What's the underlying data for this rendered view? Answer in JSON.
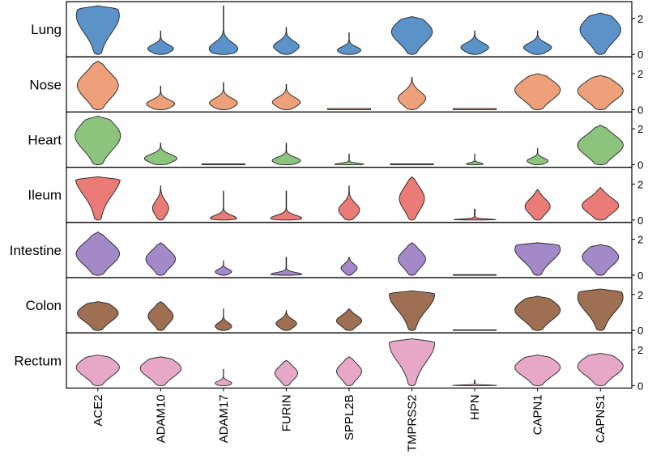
{
  "chart_data": {
    "type": "violin",
    "genes": [
      "ACE2",
      "ADAM10",
      "ADAM17",
      "FURIN",
      "SPPL2B",
      "TMPRSS2",
      "HPN",
      "CAPN1",
      "CAPNS1"
    ],
    "y_ticks": [
      "0",
      "2"
    ],
    "ylim": [
      0,
      2.8
    ],
    "tissues": [
      {
        "name": "Lung",
        "color": "#5b93c9",
        "violins": [
          {
            "max": 2.7,
            "peak": 0.8,
            "width": 0.95
          },
          {
            "max": 1.3,
            "peak": 0.25,
            "width": 0.55
          },
          {
            "max": 2.7,
            "peak": 0.12,
            "width": 0.6
          },
          {
            "max": 1.5,
            "peak": 0.3,
            "width": 0.55
          },
          {
            "max": 1.2,
            "peak": 0.2,
            "width": 0.5
          },
          {
            "max": 2.1,
            "peak": 0.6,
            "width": 0.9
          },
          {
            "max": 1.3,
            "peak": 0.3,
            "width": 0.6
          },
          {
            "max": 1.3,
            "peak": 0.3,
            "width": 0.6
          },
          {
            "max": 2.3,
            "peak": 0.6,
            "width": 0.9
          }
        ]
      },
      {
        "name": "Nose",
        "color": "#eda07a",
        "violins": [
          {
            "max": 2.7,
            "peak": 0.5,
            "width": 0.9
          },
          {
            "max": 1.3,
            "peak": 0.25,
            "width": 0.6
          },
          {
            "max": 1.5,
            "peak": 0.25,
            "width": 0.6
          },
          {
            "max": 1.4,
            "peak": 0.3,
            "width": 0.6
          },
          {
            "max": 0.06,
            "peak": 0.02,
            "width": 0.95
          },
          {
            "max": 1.8,
            "peak": 0.35,
            "width": 0.6
          },
          {
            "max": 0.06,
            "peak": 0.02,
            "width": 0.95
          },
          {
            "max": 2.0,
            "peak": 0.55,
            "width": 1.0
          },
          {
            "max": 1.9,
            "peak": 0.55,
            "width": 1.0
          }
        ]
      },
      {
        "name": "Heart",
        "color": "#8cc47e",
        "violins": [
          {
            "max": 2.7,
            "peak": 0.6,
            "width": 1.0
          },
          {
            "max": 1.2,
            "peak": 0.3,
            "width": 0.7
          },
          {
            "max": 0.06,
            "peak": 0.02,
            "width": 0.95
          },
          {
            "max": 1.2,
            "peak": 0.2,
            "width": 0.6
          },
          {
            "max": 0.6,
            "peak": 0.05,
            "width": 0.6
          },
          {
            "max": 0.06,
            "peak": 0.02,
            "width": 0.95
          },
          {
            "max": 0.6,
            "peak": 0.08,
            "width": 0.35
          },
          {
            "max": 0.9,
            "peak": 0.25,
            "width": 0.45
          },
          {
            "max": 2.2,
            "peak": 0.5,
            "width": 1.0
          }
        ]
      },
      {
        "name": "Ileum",
        "color": "#ea7b77",
        "violins": [
          {
            "max": 2.4,
            "peak": 1.0,
            "width": 1.0
          },
          {
            "max": 1.9,
            "peak": 0.35,
            "width": 0.35
          },
          {
            "max": 1.6,
            "peak": 0.06,
            "width": 0.55
          },
          {
            "max": 1.6,
            "peak": 0.06,
            "width": 0.65
          },
          {
            "max": 1.9,
            "peak": 0.3,
            "width": 0.45
          },
          {
            "max": 2.4,
            "peak": 0.5,
            "width": 0.55
          },
          {
            "max": 0.6,
            "peak": 0.0,
            "width": 0.95
          },
          {
            "max": 1.7,
            "peak": 0.45,
            "width": 0.55
          },
          {
            "max": 1.8,
            "peak": 0.45,
            "width": 0.8
          }
        ]
      },
      {
        "name": "Intestine",
        "color": "#a389c8",
        "violins": [
          {
            "max": 2.4,
            "peak": 0.5,
            "width": 0.95
          },
          {
            "max": 1.8,
            "peak": 0.5,
            "width": 0.65
          },
          {
            "max": 0.8,
            "peak": 0.25,
            "width": 0.35
          },
          {
            "max": 1.0,
            "peak": 0.05,
            "width": 0.65
          },
          {
            "max": 1.0,
            "peak": 0.4,
            "width": 0.35
          },
          {
            "max": 1.8,
            "peak": 0.5,
            "width": 0.6
          },
          {
            "max": 0.03,
            "peak": 0.0,
            "width": 0.95
          },
          {
            "max": 1.8,
            "peak": 0.8,
            "width": 1.0
          },
          {
            "max": 1.7,
            "peak": 0.6,
            "width": 0.8
          }
        ]
      },
      {
        "name": "Colon",
        "color": "#9e6f52",
        "violins": [
          {
            "max": 1.6,
            "peak": 0.6,
            "width": 0.9
          },
          {
            "max": 1.6,
            "peak": 0.5,
            "width": 0.55
          },
          {
            "max": 1.2,
            "peak": 0.2,
            "width": 0.35
          },
          {
            "max": 1.1,
            "peak": 0.35,
            "width": 0.45
          },
          {
            "max": 1.2,
            "peak": 0.45,
            "width": 0.55
          },
          {
            "max": 2.2,
            "peak": 0.9,
            "width": 1.0
          },
          {
            "max": 0.03,
            "peak": 0.0,
            "width": 0.95
          },
          {
            "max": 1.9,
            "peak": 0.6,
            "width": 1.0
          },
          {
            "max": 2.3,
            "peak": 0.8,
            "width": 1.0
          }
        ]
      },
      {
        "name": "Rectum",
        "color": "#e7a8c8",
        "violins": [
          {
            "max": 1.7,
            "peak": 0.6,
            "width": 0.95
          },
          {
            "max": 1.6,
            "peak": 0.6,
            "width": 0.9
          },
          {
            "max": 0.9,
            "peak": 0.15,
            "width": 0.35
          },
          {
            "max": 1.4,
            "peak": 0.5,
            "width": 0.5
          },
          {
            "max": 1.6,
            "peak": 0.5,
            "width": 0.55
          },
          {
            "max": 2.6,
            "peak": 0.9,
            "width": 1.0
          },
          {
            "max": 0.3,
            "peak": 0.02,
            "width": 0.95
          },
          {
            "max": 1.7,
            "peak": 0.6,
            "width": 1.0
          },
          {
            "max": 1.8,
            "peak": 0.6,
            "width": 1.0
          }
        ]
      }
    ]
  }
}
